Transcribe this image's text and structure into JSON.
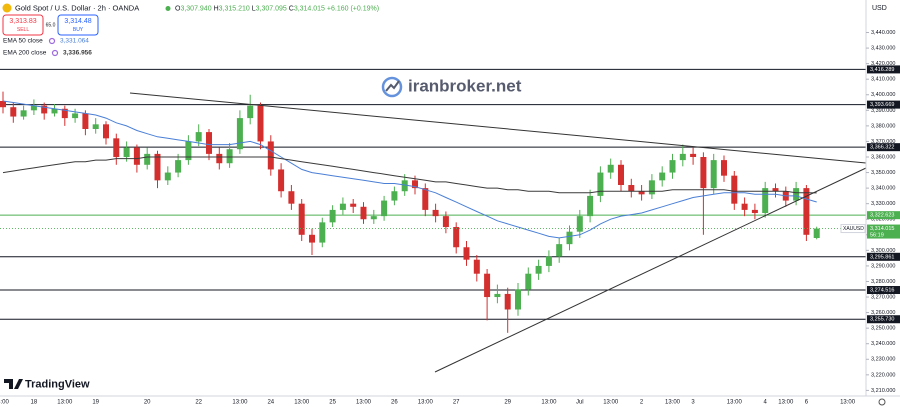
{
  "header": {
    "title": "Gold Spot / U.S. Dollar · 2h · OANDA",
    "ohlc": [
      {
        "key": "O",
        "label": "3,307.940"
      },
      {
        "key": "H",
        "label": "3,315.210"
      },
      {
        "key": "L",
        "label": "3,307.095"
      },
      {
        "key": "C",
        "label": "3,314.015"
      }
    ],
    "change": "+6.160 (+0.19%)"
  },
  "trade": {
    "sell_price": "3,313.83",
    "sell": "SELL",
    "spread": "65.0",
    "buy_price": "3,314.48",
    "buy": "BUY"
  },
  "watermark": "iranbroker.net",
  "brand": "TradingView",
  "chart_data": {
    "type": "candlestick",
    "currency": "USD",
    "categories": [
      "3:00",
      null,
      null,
      "18",
      null,
      null,
      "13:00",
      null,
      null,
      "19",
      null,
      null,
      null,
      null,
      "20",
      null,
      null,
      null,
      null,
      "22",
      null,
      null,
      null,
      "13:00",
      null,
      null,
      "24",
      null,
      null,
      "13:00",
      null,
      null,
      "25",
      null,
      null,
      "13:00",
      null,
      null,
      "26",
      null,
      null,
      "13:00",
      null,
      null,
      "27",
      null,
      null,
      null,
      null,
      "29",
      null,
      null,
      null,
      "13:00",
      null,
      null,
      "Jul",
      null,
      null,
      "13:00",
      null,
      null,
      "2",
      null,
      null,
      "13:00",
      null,
      "3",
      null,
      null,
      null,
      "13:00",
      null,
      null,
      "4",
      null,
      "13:00",
      null,
      "6",
      null,
      null,
      null,
      "13:00"
    ],
    "open": [
      3396,
      3392,
      3386,
      3390,
      3393,
      3388,
      3391,
      3385,
      3388,
      3378,
      3381,
      3372,
      3360,
      3366,
      3355,
      3362,
      3345,
      3350,
      3358,
      3370,
      3376,
      3362,
      3356,
      3365,
      3385,
      3393,
      3370,
      3352,
      3338,
      3330,
      3310,
      3305,
      3318,
      3326,
      3330,
      3328,
      3320,
      3322,
      3332,
      3338,
      3345,
      3340,
      3326,
      3322,
      3315,
      3302,
      3294,
      3285,
      3270,
      3272,
      3262,
      3275,
      3285,
      3290,
      3296,
      3304,
      3312,
      3322,
      3335,
      3350,
      3355,
      3342,
      3338,
      3336,
      3345,
      3350,
      3358,
      3362,
      3360,
      3340,
      3358,
      3348,
      3330,
      3326,
      3324,
      3340,
      3338,
      3332,
      3340,
      3307.94,
      null,
      null,
      null
    ],
    "high": [
      3402,
      3395,
      3393,
      3397,
      3395,
      3394,
      3393,
      3391,
      3390,
      3385,
      3383,
      3375,
      3370,
      3368,
      3366,
      3364,
      3354,
      3362,
      3374,
      3381,
      3378,
      3366,
      3369,
      3390,
      3400,
      3395,
      3374,
      3356,
      3342,
      3333,
      3314,
      3321,
      3329,
      3334,
      3333,
      3331,
      3326,
      3335,
      3341,
      3349,
      3348,
      3343,
      3330,
      3325,
      3318,
      3306,
      3297,
      3288,
      3278,
      3276,
      3279,
      3289,
      3294,
      3300,
      3308,
      3316,
      3326,
      3339,
      3354,
      3359,
      3358,
      3346,
      3342,
      3349,
      3354,
      3362,
      3368,
      3366,
      3363,
      3362,
      3361,
      3351,
      3334,
      3330,
      3344,
      3343,
      3341,
      3344,
      3342,
      3315.21,
      null,
      null,
      null
    ],
    "low": [
      3388,
      3382,
      3384,
      3387,
      3384,
      3386,
      3380,
      3382,
      3374,
      3375,
      3368,
      3355,
      3357,
      3350,
      3352,
      3340,
      3342,
      3347,
      3355,
      3367,
      3358,
      3352,
      3353,
      3362,
      3381,
      3365,
      3348,
      3334,
      3326,
      3306,
      3297,
      3302,
      3315,
      3323,
      3324,
      3317,
      3317,
      3319,
      3329,
      3335,
      3336,
      3322,
      3318,
      3311,
      3298,
      3290,
      3280,
      3255,
      3266,
      3247,
      3258,
      3271,
      3281,
      3286,
      3292,
      3300,
      3308,
      3318,
      3331,
      3346,
      3338,
      3334,
      3332,
      3333,
      3341,
      3346,
      3354,
      3355,
      3310,
      3336,
      3344,
      3326,
      3322,
      3320,
      3321,
      3334,
      3328,
      3329,
      3306,
      3307.095,
      null,
      null,
      null
    ],
    "close": [
      3392,
      3386,
      3390,
      3393,
      3388,
      3391,
      3385,
      3388,
      3378,
      3381,
      3372,
      3360,
      3366,
      3355,
      3362,
      3345,
      3350,
      3358,
      3370,
      3376,
      3362,
      3356,
      3365,
      3385,
      3393,
      3370,
      3352,
      3338,
      3330,
      3310,
      3305,
      3318,
      3326,
      3330,
      3328,
      3320,
      3322,
      3332,
      3338,
      3345,
      3340,
      3326,
      3322,
      3315,
      3302,
      3294,
      3285,
      3270,
      3272,
      3262,
      3275,
      3285,
      3290,
      3296,
      3304,
      3312,
      3322,
      3335,
      3350,
      3355,
      3342,
      3338,
      3336,
      3345,
      3350,
      3358,
      3362,
      3360,
      3340,
      3358,
      3348,
      3330,
      3326,
      3324,
      3340,
      3338,
      3332,
      3340,
      3310,
      3314.015,
      null,
      null,
      null
    ],
    "up_color": "#4caf50",
    "down_color": "#d32f2f",
    "series": [
      {
        "name": "EMA 50 close",
        "color": "#4a7fd6",
        "value_label": "3,331.064",
        "values": [
          3396,
          3395,
          3394,
          3393,
          3392,
          3391,
          3390,
          3389,
          3388,
          3387,
          3385,
          3382,
          3380,
          3377,
          3375,
          3373,
          3372,
          3371,
          3370,
          3369,
          3368,
          3368,
          3368,
          3369,
          3370,
          3368,
          3364,
          3360,
          3356,
          3352,
          3350,
          3349,
          3348,
          3347,
          3346,
          3345,
          3344,
          3343,
          3343,
          3342,
          3341,
          3339,
          3337,
          3334,
          3331,
          3328,
          3325,
          3322,
          3319,
          3317,
          3315,
          3313,
          3311,
          3309,
          3308,
          3309,
          3310,
          3313,
          3317,
          3320,
          3322,
          3323,
          3324,
          3326,
          3328,
          3330,
          3332,
          3334,
          3335,
          3336,
          3337,
          3337,
          3337,
          3336,
          3336,
          3336,
          3335,
          3335,
          3333,
          3331.064,
          null,
          null,
          null
        ]
      },
      {
        "name": "EMA 200 close",
        "color": "#3a3a3a",
        "value_label": "3,336.956",
        "values": [
          3350,
          3351,
          3352,
          3353,
          3354,
          3355,
          3356,
          3357,
          3357,
          3358,
          3358,
          3359,
          3359,
          3359,
          3360,
          3360,
          3360,
          3360,
          3360,
          3360,
          3360,
          3360,
          3360,
          3360,
          3360,
          3360,
          3360,
          3359,
          3358,
          3357,
          3356,
          3355,
          3354,
          3353,
          3352,
          3351,
          3350,
          3349,
          3348,
          3347,
          3346,
          3345,
          3344,
          3344,
          3343,
          3342,
          3341,
          3340,
          3340,
          3339,
          3339,
          3338,
          3338,
          3338,
          3337,
          3337,
          3337,
          3337,
          3338,
          3338,
          3338,
          3338,
          3338,
          3338,
          3338,
          3339,
          3339,
          3339,
          3339,
          3339,
          3339,
          3338,
          3338,
          3338,
          3338,
          3338,
          3338,
          3337,
          3337,
          3336.956,
          null,
          null,
          null
        ]
      }
    ],
    "ylim": [
      3206.4,
      3460.9
    ],
    "yticks": [
      {
        "value": 3210,
        "label": "3,210.000"
      },
      {
        "value": 3220,
        "label": "3,220.000"
      },
      {
        "value": 3230,
        "label": "3,230.000"
      },
      {
        "value": 3240,
        "label": "3,240.000"
      },
      {
        "value": 3250,
        "label": "3,250.000"
      },
      {
        "value": 3260,
        "label": "3,260.000"
      },
      {
        "value": 3270,
        "label": "3,270.000"
      },
      {
        "value": 3280,
        "label": "3,280.000"
      },
      {
        "value": 3290,
        "label": "3,290.000"
      },
      {
        "value": 3300,
        "label": "3,300.000"
      },
      {
        "value": 3310,
        "label": "3,310.000"
      },
      {
        "value": 3320,
        "label": "3,320.000"
      },
      {
        "value": 3330,
        "label": "3,330.000"
      },
      {
        "value": 3340,
        "label": "3,340.000"
      },
      {
        "value": 3350,
        "label": "3,350.000"
      },
      {
        "value": 3360,
        "label": "3,360.000"
      },
      {
        "value": 3370,
        "label": "3,370.000"
      },
      {
        "value": 3380,
        "label": "3,380.000"
      },
      {
        "value": 3390,
        "label": "3,390.000"
      },
      {
        "value": 3400,
        "label": "3,400.000"
      },
      {
        "value": 3410,
        "label": "3,410.000"
      },
      {
        "value": 3420,
        "label": "3,420.000"
      },
      {
        "value": 3430,
        "label": "3,430.000"
      },
      {
        "value": 3440,
        "label": "3,440.000"
      }
    ],
    "levels": [
      {
        "value": 3416.289,
        "label": "3,416.289",
        "color": "#131722"
      },
      {
        "value": 3393.669,
        "label": "3,393.669",
        "color": "#131722"
      },
      {
        "value": 3366.322,
        "label": "3,366.322",
        "color": "#131722"
      },
      {
        "value": 3322.623,
        "label": "3,322.623",
        "color": "#4caf50"
      },
      {
        "value": 3295.861,
        "label": "3,295.861",
        "color": "#131722"
      },
      {
        "value": 3274.516,
        "label": "3,274.516",
        "color": "#131722"
      },
      {
        "value": 3255.73,
        "label": "3,255.730",
        "color": "#131722"
      }
    ],
    "last_price": {
      "symbol": "XAUUSD",
      "value": 3314.015,
      "label": "3,314.015",
      "countdown": "56:19",
      "color": "#4caf50"
    }
  }
}
